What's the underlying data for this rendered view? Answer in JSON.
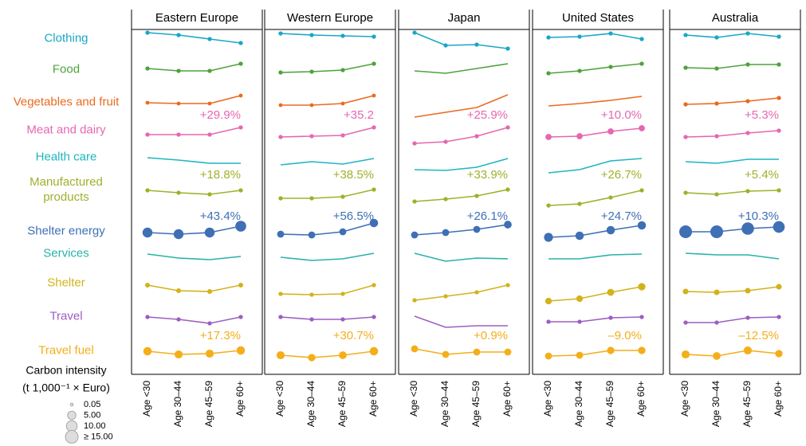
{
  "chart_data": {
    "type": "line",
    "categories": [
      "Age <30",
      "Age 30–44",
      "Age 45–59",
      "Age 60+"
    ],
    "rows": [
      {
        "name": "Clothing",
        "color": "#1aa7c6"
      },
      {
        "name": "Food",
        "color": "#4da33b"
      },
      {
        "name": "Vegetables and fruit",
        "color": "#ea6a1f"
      },
      {
        "name": "Meat and dairy",
        "color": "#e667b0"
      },
      {
        "name": "Health care",
        "color": "#1fb6c0"
      },
      {
        "name": "Manufactured\nproducts",
        "color": "#a1b02a"
      },
      {
        "name": "Shelter energy",
        "color": "#3f6fb5"
      },
      {
        "name": "Services",
        "color": "#27b3a7"
      },
      {
        "name": "Shelter",
        "color": "#d3b21b"
      },
      {
        "name": "Travel",
        "color": "#9c5ec0"
      },
      {
        "name": "Travel fuel",
        "color": "#f4ae1a"
      }
    ],
    "row_ylim": [
      -20,
      20
    ],
    "panels": [
      {
        "title": "Eastern Europe",
        "series": [
          {
            "values": [
              7,
              4,
              -1,
              -6
            ],
            "sizes": [
              0.5,
              0.5,
              0.5,
              0.5
            ]
          },
          {
            "values": [
              1,
              -2,
              -2,
              7
            ],
            "sizes": [
              0.5,
              0.5,
              0.5,
              0.5
            ]
          },
          {
            "values": [
              -1,
              -2,
              -2,
              8
            ],
            "sizes": [
              0.3,
              0.3,
              0.3,
              0.3
            ]
          },
          {
            "values": [
              -6,
              -6,
              -6,
              3
            ],
            "sizes": [
              0.5,
              0.5,
              0.5,
              0.5
            ]
          },
          {
            "values": [
              -1,
              -4,
              -8,
              -8
            ],
            "sizes": null
          },
          {
            "values": [
              -1,
              -4,
              -6,
              -1
            ],
            "sizes": [
              0.5,
              0.5,
              0.5,
              0.5
            ]
          },
          {
            "values": [
              -2,
              -4,
              -2,
              6
            ],
            "sizes": [
              8,
              8,
              8,
              10
            ]
          },
          {
            "values": [
              -1,
              -6,
              -8,
              -4
            ],
            "sizes": null
          },
          {
            "values": [
              -3,
              -10,
              -11,
              -3
            ],
            "sizes": [
              0.8,
              0.8,
              0.8,
              0.8
            ]
          },
          {
            "values": [
              -1,
              -4,
              -9,
              -1
            ],
            "sizes": [
              0.5,
              0.5,
              0.5,
              0.5
            ]
          },
          {
            "values": [
              -1,
              -5,
              -4,
              0
            ],
            "sizes": [
              5,
              4.5,
              4.5,
              5
            ]
          }
        ],
        "annotations": [
          {
            "text": "+29.9%",
            "row": 3
          },
          {
            "text": "+18.8%",
            "row": 5
          },
          {
            "text": "+43.4%",
            "row": 6
          },
          {
            "text": "+17.3%",
            "row": 10
          }
        ]
      },
      {
        "title": "Western Europe",
        "series": [
          {
            "values": [
              6,
              4,
              3,
              2
            ],
            "sizes": [
              0.5,
              0.5,
              0.5,
              0.5
            ]
          },
          {
            "values": [
              -4,
              -3,
              -1,
              7
            ],
            "sizes": [
              0.5,
              0.5,
              0.5,
              0.5
            ]
          },
          {
            "values": [
              -4,
              -4,
              -2,
              8
            ],
            "sizes": [
              0.3,
              0.3,
              0.3,
              0.3
            ]
          },
          {
            "values": [
              -9,
              -8,
              -7,
              3
            ],
            "sizes": [
              0.5,
              0.5,
              0.5,
              0.5
            ]
          },
          {
            "values": [
              -10,
              -6,
              -9,
              -2
            ],
            "sizes": null
          },
          {
            "values": [
              -11,
              -11,
              -9,
              0
            ],
            "sizes": [
              0.5,
              0.5,
              0.5,
              0.5
            ]
          },
          {
            "values": [
              -4,
              -5,
              -1,
              10
            ],
            "sizes": [
              3,
              3,
              3,
              5
            ]
          },
          {
            "values": [
              -5,
              -9,
              -7,
              0
            ],
            "sizes": null
          },
          {
            "values": [
              -14,
              -15,
              -14,
              -3
            ],
            "sizes": [
              0.5,
              0.5,
              0.5,
              0.5
            ]
          },
          {
            "values": [
              -1,
              -4,
              -4,
              -1
            ],
            "sizes": [
              0.5,
              0.5,
              0.5,
              0.5
            ]
          },
          {
            "values": [
              -6,
              -9,
              -6,
              -1
            ],
            "sizes": [
              4.5,
              3.5,
              4,
              5
            ]
          }
        ],
        "annotations": [
          {
            "text": "+35.2",
            "row": 3
          },
          {
            "text": "+38.5%",
            "row": 5
          },
          {
            "text": "+56.5%",
            "row": 6
          },
          {
            "text": "+30.7%",
            "row": 10
          }
        ]
      },
      {
        "title": "Japan",
        "series": [
          {
            "values": [
              7,
              -9,
              -8,
              -13
            ],
            "sizes": [
              0.5,
              0.5,
              0.5,
              0.5
            ]
          },
          {
            "values": [
              -2,
              -5,
              1,
              7
            ],
            "sizes": null
          },
          {
            "values": [
              -19,
              -13,
              -7,
              9
            ],
            "sizes": null
          },
          {
            "values": [
              -17,
              -15,
              -8,
              3
            ],
            "sizes": [
              0.5,
              0.5,
              0.5,
              0.5
            ]
          },
          {
            "values": [
              -16,
              -17,
              -13,
              -2
            ],
            "sizes": null
          },
          {
            "values": [
              -15,
              -12,
              -8,
              0
            ],
            "sizes": [
              0.5,
              0.5,
              0.5,
              0.5
            ]
          },
          {
            "values": [
              -5,
              -2,
              2,
              8
            ],
            "sizes": [
              3,
              3,
              3,
              4
            ]
          },
          {
            "values": [
              0,
              -10,
              -6,
              -7
            ],
            "sizes": null
          },
          {
            "values": [
              -22,
              -17,
              -12,
              -3
            ],
            "sizes": [
              0.5,
              0.5,
              0.5,
              0.5
            ]
          },
          {
            "values": [
              0,
              -14,
              -12,
              -12
            ],
            "sizes": null
          },
          {
            "values": [
              2,
              -5,
              -2,
              -2
            ],
            "sizes": [
              3,
              3,
              3,
              3
            ]
          }
        ],
        "annotations": [
          {
            "text": "+25.9%",
            "row": 3
          },
          {
            "text": "+33.9%",
            "row": 5
          },
          {
            "text": "+26.1%",
            "row": 6
          },
          {
            "text": "+0.9%",
            "row": 10
          }
        ]
      },
      {
        "title": "United States",
        "series": [
          {
            "values": [
              1,
              2,
              6,
              -1
            ],
            "sizes": [
              0.5,
              0.5,
              0.5,
              0.5
            ]
          },
          {
            "values": [
              -5,
              -2,
              3,
              7
            ],
            "sizes": [
              0.5,
              0.5,
              0.5,
              0.5
            ]
          },
          {
            "values": [
              -5,
              -2,
              2,
              7
            ],
            "sizes": null
          },
          {
            "values": [
              -9,
              -8,
              -2,
              2
            ],
            "sizes": [
              2,
              2,
              2,
              2
            ]
          },
          {
            "values": [
              -20,
              -16,
              -5,
              -2
            ],
            "sizes": null
          },
          {
            "values": [
              -20,
              -18,
              -10,
              -1
            ],
            "sizes": [
              0.5,
              0.5,
              0.5,
              0.5
            ]
          },
          {
            "values": [
              -8,
              -6,
              1,
              7
            ],
            "sizes": [
              6,
              5,
              5,
              5
            ]
          },
          {
            "values": [
              -7,
              -7,
              -2,
              -1
            ],
            "sizes": null
          },
          {
            "values": [
              -23,
              -20,
              -12,
              -5
            ],
            "sizes": [
              2.5,
              2.5,
              3,
              3.5
            ]
          },
          {
            "values": [
              -7,
              -7,
              -2,
              -1
            ],
            "sizes": [
              0.5,
              0.5,
              0.5,
              0.5
            ]
          },
          {
            "values": [
              -7,
              -6,
              0,
              0
            ],
            "sizes": [
              3,
              3,
              3.5,
              3.5
            ]
          }
        ],
        "annotations": [
          {
            "text": "+10.0%",
            "row": 3
          },
          {
            "text": "+26.7%",
            "row": 5
          },
          {
            "text": "+24.7%",
            "row": 6
          },
          {
            "text": "–9.0%",
            "row": 10
          }
        ]
      },
      {
        "title": "Australia",
        "series": [
          {
            "values": [
              4,
              1,
              6,
              2
            ],
            "sizes": [
              0.5,
              0.5,
              0.5,
              0.5
            ]
          },
          {
            "values": [
              2,
              1,
              6,
              6
            ],
            "sizes": [
              0.5,
              0.5,
              0.5,
              0.5
            ]
          },
          {
            "values": [
              -3,
              -2,
              1,
              5
            ],
            "sizes": [
              0.5,
              0.5,
              0.5,
              0.5
            ]
          },
          {
            "values": [
              -9,
              -8,
              -4,
              -1
            ],
            "sizes": [
              0.5,
              0.5,
              0.5,
              0.5
            ]
          },
          {
            "values": [
              -6,
              -8,
              -3,
              -3
            ],
            "sizes": null
          },
          {
            "values": [
              -4,
              -6,
              -2,
              -1
            ],
            "sizes": [
              0.5,
              0.5,
              0.5,
              0.5
            ]
          },
          {
            "values": [
              -1,
              -1,
              3,
              5
            ],
            "sizes": [
              15,
              15,
              14,
              12
            ]
          },
          {
            "values": [
              0,
              -2,
              -2,
              -7
            ],
            "sizes": null
          },
          {
            "values": [
              -11,
              -12,
              -10,
              -5
            ],
            "sizes": [
              1.5,
              1.5,
              1.5,
              1.5
            ]
          },
          {
            "values": [
              -8,
              -8,
              -2,
              -1
            ],
            "sizes": [
              0.5,
              0.5,
              0.5,
              0.5
            ]
          },
          {
            "values": [
              -5,
              -7,
              0,
              -4
            ],
            "sizes": [
              4.5,
              4,
              4.5,
              3.5
            ]
          }
        ],
        "annotations": [
          {
            "text": "+5.3%",
            "row": 3
          },
          {
            "text": "+5.4%",
            "row": 5
          },
          {
            "text": "+10.3%",
            "row": 6
          },
          {
            "text": "–12.5%",
            "row": 10
          }
        ]
      }
    ],
    "size_legend": {
      "title": [
        "Carbon intensity",
        "(t 1,000⁻¹ × Euro)"
      ],
      "ticks": [
        {
          "value": 0.05,
          "label": "0.05"
        },
        {
          "value": 5,
          "label": "5.00"
        },
        {
          "value": 10,
          "label": "10.00"
        },
        {
          "value": 15,
          "label": "≥ 15.00"
        }
      ]
    }
  }
}
